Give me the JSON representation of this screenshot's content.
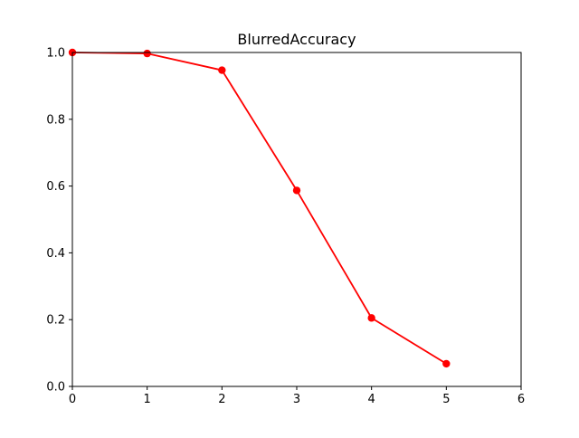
{
  "chart_data": {
    "type": "line",
    "title": "BlurredAccuracy",
    "xlabel": "",
    "ylabel": "",
    "xlim": [
      0,
      6
    ],
    "ylim": [
      0,
      1.0
    ],
    "x_ticks": [
      "0",
      "1",
      "2",
      "3",
      "4",
      "5",
      "6"
    ],
    "y_ticks": [
      "0.0",
      "0.2",
      "0.4",
      "0.6",
      "0.8",
      "1.0"
    ],
    "grid": false,
    "legend": "none",
    "series": [
      {
        "color": "#ff0000",
        "marker": "circle",
        "x": [
          0,
          1,
          2,
          3,
          4,
          5
        ],
        "y": [
          1.0,
          0.997,
          0.947,
          0.587,
          0.205,
          0.068
        ]
      }
    ]
  }
}
